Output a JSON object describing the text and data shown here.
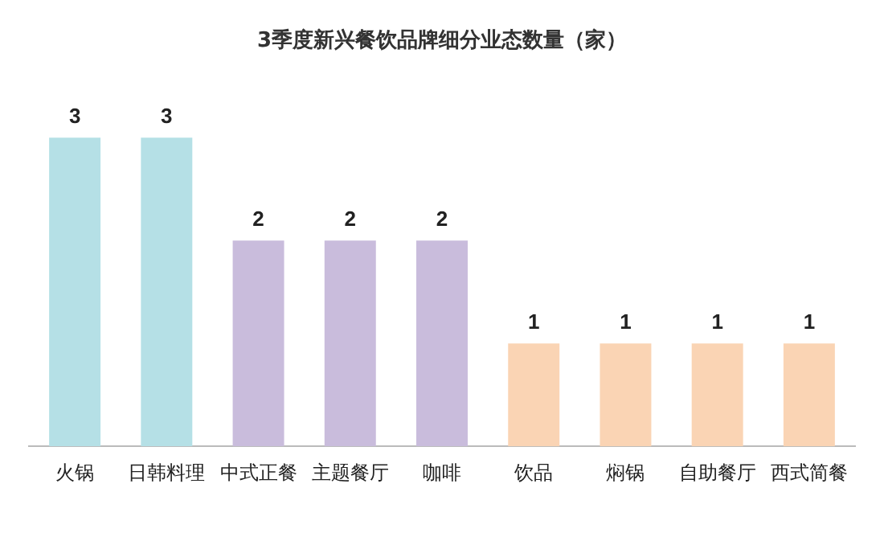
{
  "chart_data": {
    "type": "bar",
    "title": "3季度新兴餐饮品牌细分业态数量（家）",
    "categories": [
      "火锅",
      "日韩料理",
      "中式正餐",
      "主题餐厅",
      "咖啡",
      "饮品",
      "焖锅",
      "自助餐厅",
      "西式简餐"
    ],
    "values": [
      3,
      3,
      2,
      2,
      2,
      1,
      1,
      1,
      1
    ],
    "colors": [
      "#b5e0e6",
      "#b5e0e6",
      "#c9bcdc",
      "#c9bcdc",
      "#c9bcdc",
      "#fad4b4",
      "#fad4b4",
      "#fad4b4",
      "#fad4b4"
    ],
    "data_labels": true,
    "grid": false,
    "legend": false
  }
}
